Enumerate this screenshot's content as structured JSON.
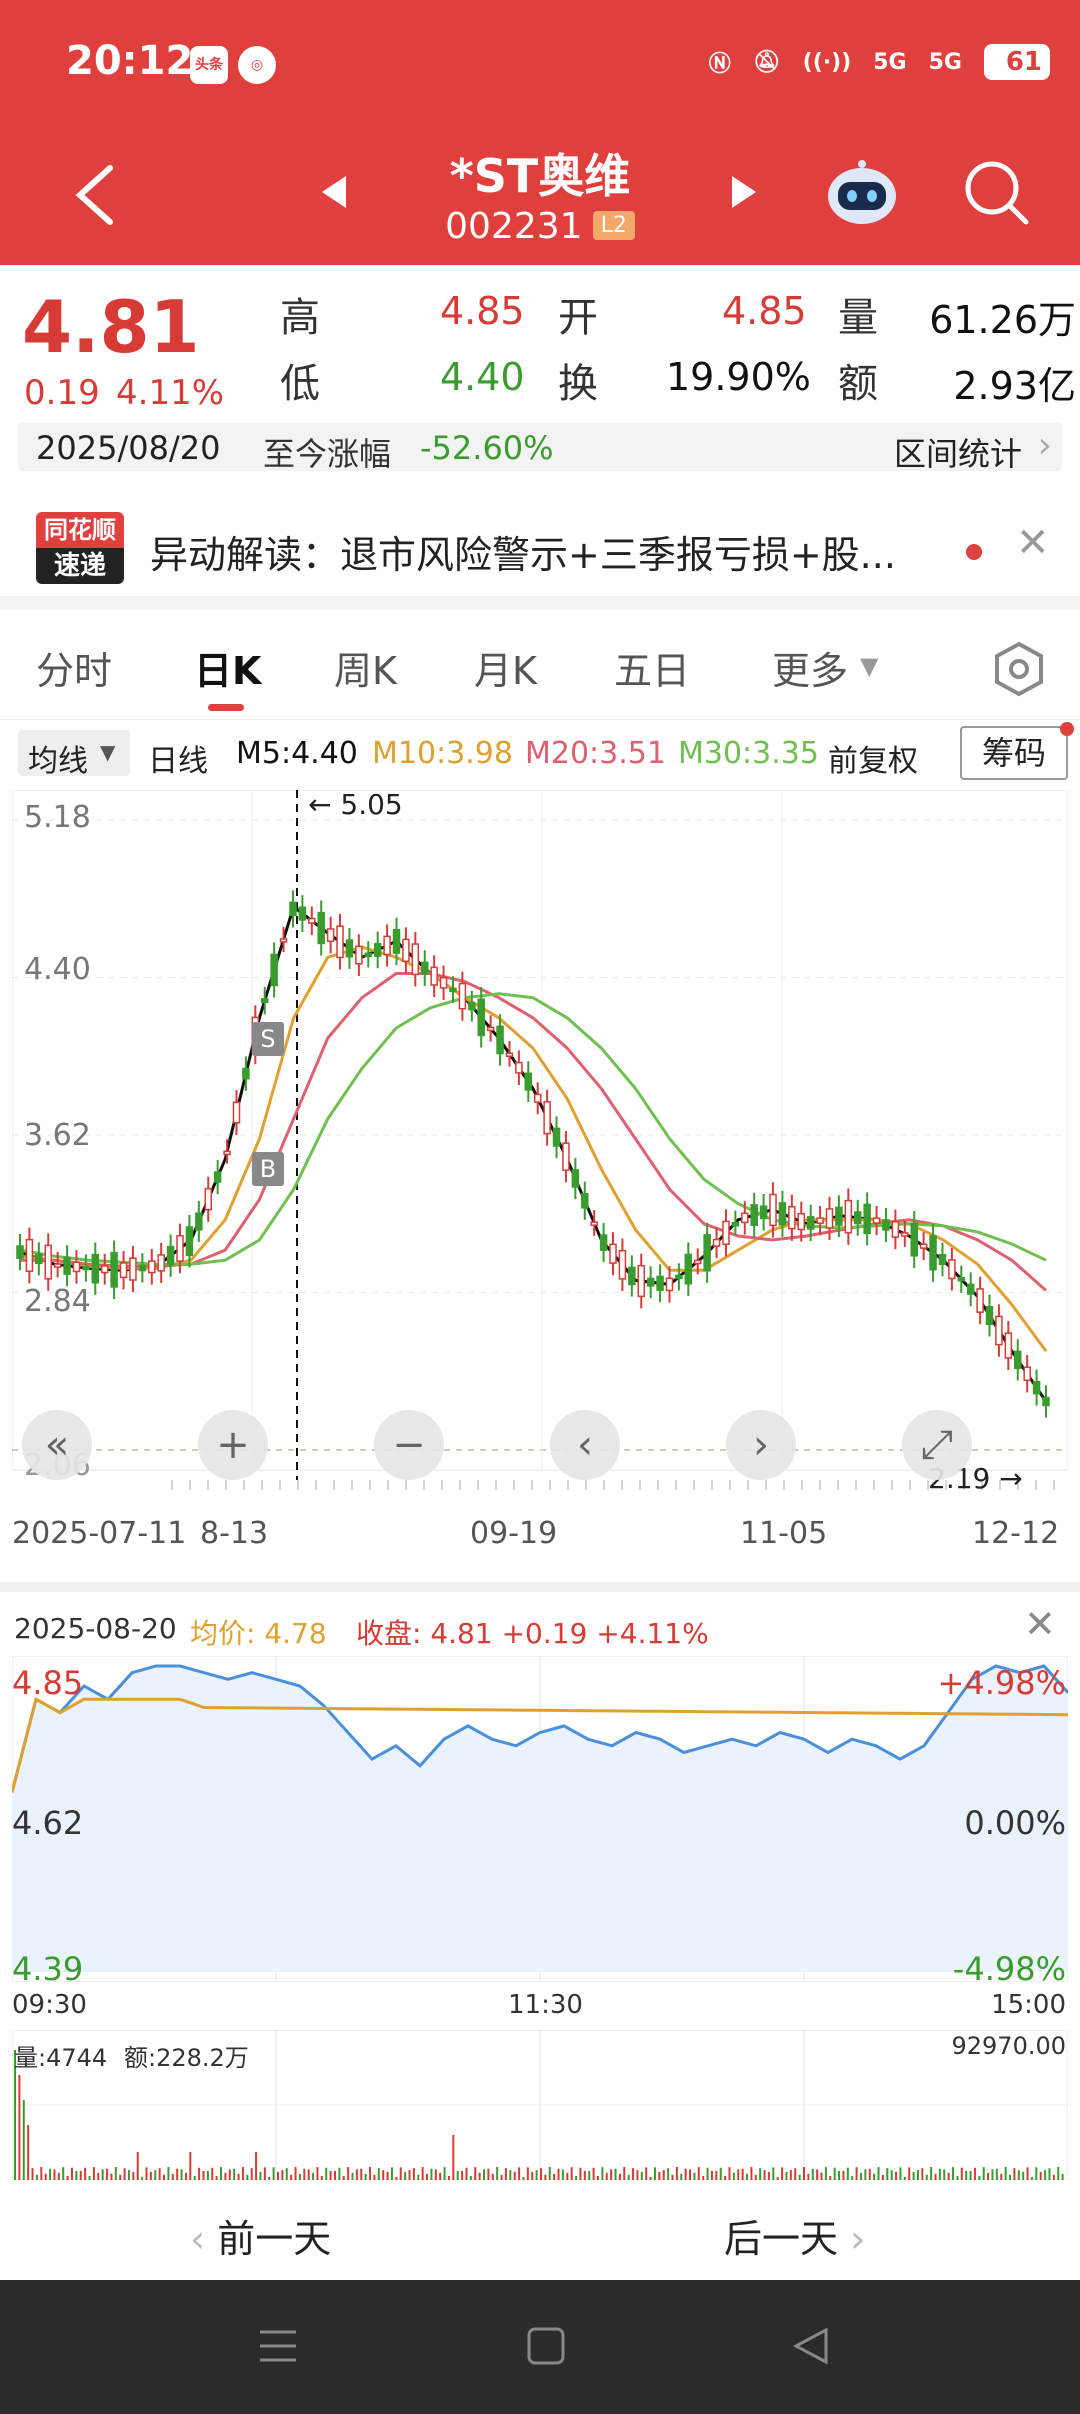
{
  "status_bar": {
    "time": "20:12",
    "app1": "头条",
    "app2": "",
    "battery": "61",
    "signal1": "5G",
    "signal2": "5G"
  },
  "header": {
    "title": "*ST奥维",
    "code": "002231",
    "level_badge": "L2"
  },
  "quote": {
    "price": "4.81",
    "change": "0.19",
    "change_pct": "4.11%",
    "high_label": "高",
    "high": "4.85",
    "open_label": "开",
    "open": "4.85",
    "volume_label": "量",
    "volume": "61.26万",
    "low_label": "低",
    "low": "4.40",
    "turnover_label": "换",
    "turnover": "19.90%",
    "amount_label": "额",
    "amount": "2.93亿",
    "date": "2025/08/20",
    "since_label": "至今涨幅",
    "since_value": "-52.60%",
    "range_stats": "区间统计"
  },
  "news": {
    "logo_top": "同花顺",
    "logo_bottom": "速递",
    "text": "异动解读：退市风险警示+三季报亏损+股..."
  },
  "tabs": [
    "分时",
    "日K",
    "周K",
    "月K",
    "五日",
    "更多"
  ],
  "active_tab": 1,
  "ma": {
    "selector": "均线",
    "period": "日线",
    "m5": "M5:4.40",
    "m10": "M10:3.98",
    "m20": "M20:3.51",
    "m30": "M30:3.35",
    "adjust": "前复权",
    "chips": "筹码"
  },
  "colors": {
    "brand": "#e0403d",
    "up": "#d73b36",
    "down": "#3a9c2f",
    "m5": "#111111",
    "m10": "#e0a030",
    "m20": "#e06070",
    "m30": "#70c050",
    "intraday": "#4a8fdc",
    "avg": "#e0a030"
  },
  "kline": {
    "y_labels": [
      "5.18",
      "4.40",
      "3.62",
      "2.84",
      "2.06"
    ],
    "x_labels": [
      "2025-07-11",
      "8-13",
      "09-19",
      "11-05",
      "12-12"
    ],
    "max_marker": "5.05",
    "min_marker": "2.19",
    "signal_s": "S",
    "signal_b": "B"
  },
  "chart_data": {
    "type": "line",
    "title": "",
    "series": [
      {
        "name": "M5",
        "values": [
          3.04,
          2.98,
          2.96,
          2.95,
          2.97,
          3.1,
          3.5,
          4.2,
          4.75,
          4.62,
          4.5,
          4.58,
          4.42,
          4.3,
          4.1,
          3.85,
          3.5,
          3.1,
          2.9,
          2.88,
          3.02,
          3.2,
          3.25,
          3.18,
          3.22,
          3.2,
          3.12,
          3.0,
          2.82,
          2.55,
          2.3
        ]
      },
      {
        "name": "M10",
        "values": [
          3.02,
          3.0,
          2.97,
          2.96,
          2.96,
          3.0,
          3.2,
          3.6,
          4.2,
          4.5,
          4.55,
          4.5,
          4.42,
          4.3,
          4.2,
          4.05,
          3.8,
          3.45,
          3.15,
          2.95,
          2.95,
          3.05,
          3.15,
          3.2,
          3.2,
          3.2,
          3.18,
          3.1,
          2.98,
          2.78,
          2.55
        ]
      },
      {
        "name": "M20",
        "values": [
          3.0,
          3.0,
          2.98,
          2.97,
          2.97,
          2.98,
          3.05,
          3.3,
          3.7,
          4.1,
          4.3,
          4.42,
          4.42,
          4.38,
          4.3,
          4.2,
          4.05,
          3.85,
          3.6,
          3.35,
          3.18,
          3.12,
          3.1,
          3.12,
          3.15,
          3.18,
          3.2,
          3.17,
          3.1,
          3.0,
          2.85
        ]
      },
      {
        "name": "M30",
        "values": [
          3.05,
          3.02,
          3.0,
          2.99,
          2.98,
          2.98,
          3.0,
          3.1,
          3.35,
          3.7,
          3.95,
          4.15,
          4.25,
          4.3,
          4.32,
          4.3,
          4.2,
          4.05,
          3.85,
          3.6,
          3.4,
          3.28,
          3.2,
          3.17,
          3.16,
          3.17,
          3.18,
          3.17,
          3.14,
          3.08,
          3.0
        ]
      }
    ],
    "ylim": [
      2.06,
      5.18
    ],
    "y_ticks": [
      "5.18",
      "4.40",
      "3.62",
      "2.84",
      "2.06"
    ],
    "x_ticks": [
      "2025-07-11",
      "8-13",
      "09-19",
      "11-05",
      "12-12"
    ],
    "max_price": 5.05,
    "min_price": 2.19
  },
  "intraday": {
    "date": "2025-08-20",
    "avg_label": "均价:",
    "avg": "4.78",
    "close_label": "收盘:",
    "close": "4.81 +0.19 +4.11%",
    "y_high": "4.85",
    "y_mid": "4.62",
    "y_low": "4.39",
    "pct_high": "+4.98%",
    "pct_mid": "0.00%",
    "pct_low": "-4.98%",
    "t_start": "09:30",
    "t_mid": "11:30",
    "t_end": "15:00",
    "vol_label": "量:4744",
    "amt_label": "额:228.2万",
    "vol_max": "92970.00",
    "prev_day": "前一天",
    "next_day": "后一天",
    "prices": [
      4.66,
      4.8,
      4.78,
      4.82,
      4.8,
      4.84,
      4.85,
      4.85,
      4.84,
      4.83,
      4.84,
      4.83,
      4.82,
      4.79,
      4.75,
      4.71,
      4.73,
      4.7,
      4.74,
      4.76,
      4.74,
      4.73,
      4.75,
      4.76,
      4.74,
      4.73,
      4.75,
      4.74,
      4.72,
      4.73,
      4.74,
      4.73,
      4.75,
      4.74,
      4.72,
      4.74,
      4.73,
      4.71,
      4.73,
      4.78,
      4.83,
      4.85,
      4.84,
      4.85,
      4.81
    ]
  }
}
